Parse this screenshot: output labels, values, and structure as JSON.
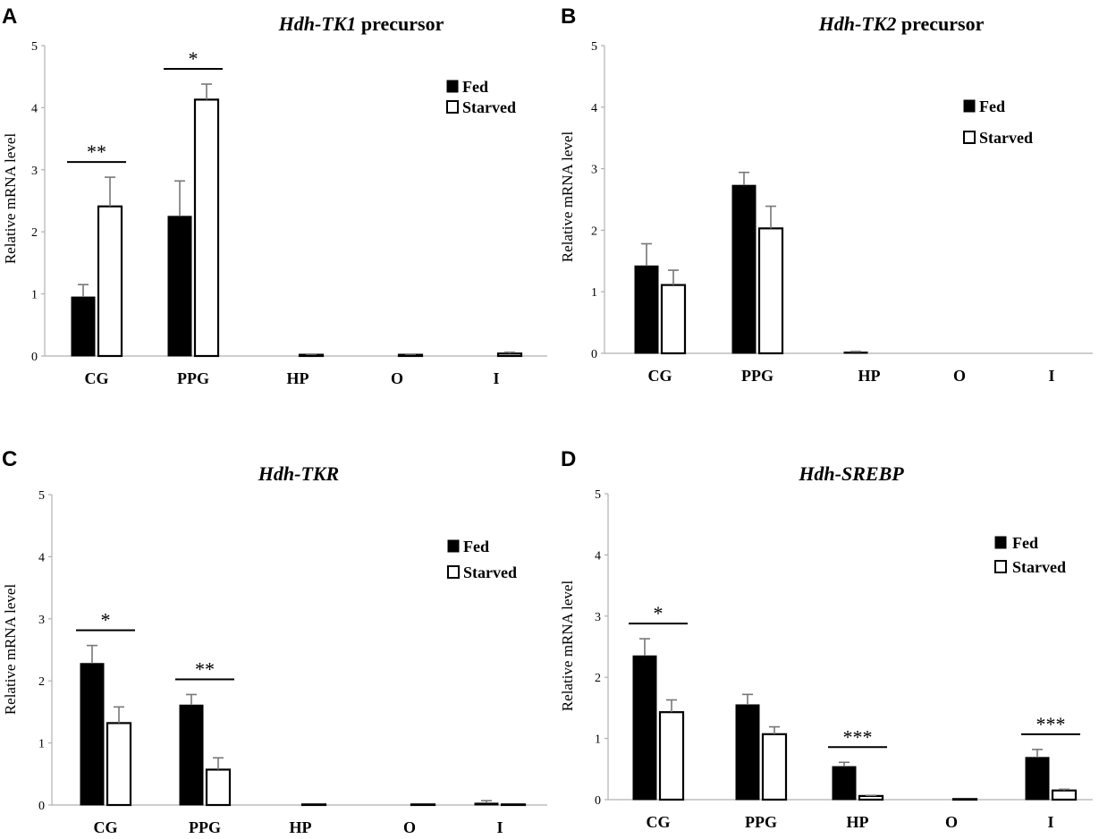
{
  "chart_data": [
    {
      "panel": "A",
      "type": "bar",
      "title_italic": "Hdh-TK1",
      "title_rest": " precursor",
      "ylabel": "Relative mRNA level",
      "ylim": [
        0,
        5
      ],
      "yticks": [
        "0",
        "1",
        "2",
        "3",
        "4",
        "5"
      ],
      "categories": [
        "CG",
        "PPG",
        "HP",
        "O",
        "I"
      ],
      "series": [
        {
          "name": "Fed",
          "values": [
            0.95,
            2.25,
            0.0,
            0.0,
            0.0
          ],
          "errors": [
            0.2,
            0.57,
            0.0,
            0.0,
            0.0
          ],
          "color": "#000000"
        },
        {
          "name": "Starved",
          "values": [
            2.41,
            4.13,
            0.02,
            0.02,
            0.04
          ],
          "errors": [
            0.47,
            0.25,
            0.01,
            0.01,
            0.02
          ],
          "color": "#ffffff"
        }
      ],
      "significance": [
        {
          "category": "CG",
          "label": "**"
        },
        {
          "category": "PPG",
          "label": "*"
        }
      ]
    },
    {
      "panel": "B",
      "type": "bar",
      "title_italic": "Hdh-TK2",
      "title_rest": " precursor",
      "ylabel": "Relative mRNA level",
      "ylim": [
        0,
        5
      ],
      "yticks": [
        "0",
        "1",
        "2",
        "3",
        "4",
        "5"
      ],
      "categories": [
        "CG",
        "PPG",
        "HP",
        "O",
        "I"
      ],
      "series": [
        {
          "name": "Fed",
          "values": [
            1.42,
            2.73,
            0.02,
            0.0,
            0.0
          ],
          "errors": [
            0.36,
            0.21,
            0.01,
            0.0,
            0.0
          ],
          "color": "#000000"
        },
        {
          "name": "Starved",
          "values": [
            1.11,
            2.03,
            0.0,
            0.0,
            0.0
          ],
          "errors": [
            0.24,
            0.36,
            0.0,
            0.0,
            0.0
          ],
          "color": "#ffffff"
        }
      ],
      "significance": []
    },
    {
      "panel": "C",
      "type": "bar",
      "title_italic": "Hdh-TKR",
      "title_rest": "",
      "ylabel": "Relative mRNA level",
      "ylim": [
        0,
        5
      ],
      "yticks": [
        "0",
        "1",
        "2",
        "3",
        "4",
        "5"
      ],
      "categories": [
        "CG",
        "PPG",
        "HP",
        "O",
        "I"
      ],
      "series": [
        {
          "name": "Fed",
          "values": [
            2.28,
            1.61,
            0.0,
            0.0,
            0.03
          ],
          "errors": [
            0.29,
            0.17,
            0.0,
            0.0,
            0.04
          ],
          "color": "#000000"
        },
        {
          "name": "Starved",
          "values": [
            1.32,
            0.57,
            0.01,
            0.01,
            0.01
          ],
          "errors": [
            0.26,
            0.19,
            0.0,
            0.0,
            0.0
          ],
          "color": "#ffffff"
        }
      ],
      "significance": [
        {
          "category": "CG",
          "label": "*"
        },
        {
          "category": "PPG",
          "label": "**"
        }
      ]
    },
    {
      "panel": "D",
      "type": "bar",
      "title_italic": "Hdh-SREBP",
      "title_rest": "",
      "ylabel": "Relative mRNA level",
      "ylim": [
        0,
        5
      ],
      "yticks": [
        "0",
        "1",
        "2",
        "3",
        "4",
        "5"
      ],
      "categories": [
        "CG",
        "PPG",
        "HP",
        "O",
        "I"
      ],
      "series": [
        {
          "name": "Fed",
          "values": [
            2.35,
            1.55,
            0.54,
            0.0,
            0.69
          ],
          "errors": [
            0.28,
            0.17,
            0.07,
            0.0,
            0.13
          ],
          "color": "#000000"
        },
        {
          "name": "Starved",
          "values": [
            1.43,
            1.07,
            0.06,
            0.01,
            0.15
          ],
          "errors": [
            0.2,
            0.12,
            0.01,
            0.0,
            0.02
          ],
          "color": "#ffffff"
        }
      ],
      "significance": [
        {
          "category": "CG",
          "label": "*"
        },
        {
          "category": "HP",
          "label": "***"
        },
        {
          "category": "I",
          "label": "***"
        }
      ]
    }
  ]
}
